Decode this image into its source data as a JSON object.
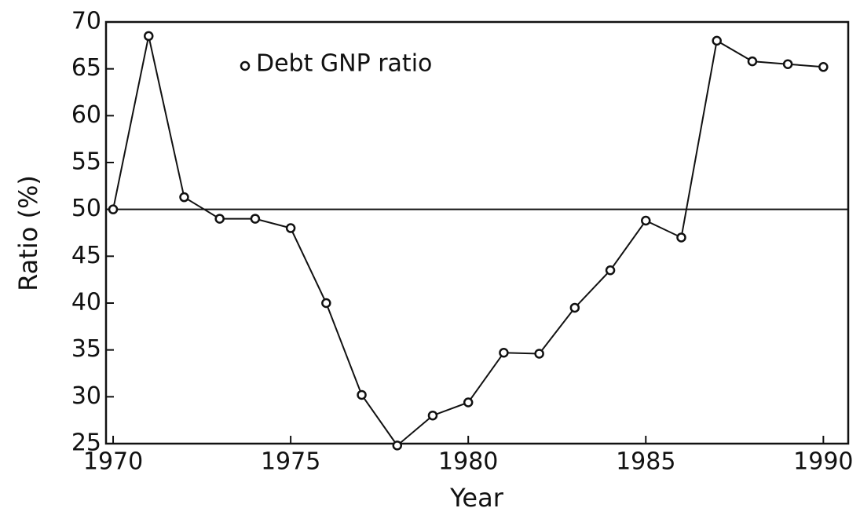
{
  "chart_data": {
    "type": "line",
    "x_label": "Year",
    "y_label": "Ratio (%)",
    "x": [
      1970,
      1971,
      1972,
      1973,
      1974,
      1975,
      1976,
      1977,
      1978,
      1979,
      1980,
      1981,
      1982,
      1983,
      1984,
      1985,
      1986,
      1987,
      1988,
      1989,
      1990
    ],
    "series": [
      {
        "name": "Debt GNP ratio",
        "color": "#111111",
        "values": [
          50,
          68.5,
          51.3,
          49,
          49,
          48,
          40,
          30.2,
          24.8,
          28,
          29.4,
          34.7,
          34.6,
          39.5,
          43.5,
          48.8,
          47,
          68,
          65.8,
          65.5,
          65.2
        ]
      }
    ],
    "reference_y": 50,
    "xlim": [
      1969.8,
      1990.7
    ],
    "xticks": [
      1970,
      1975,
      1980,
      1985,
      1990
    ],
    "ylim": [
      25,
      70
    ],
    "yticks": [
      25,
      30,
      35,
      40,
      45,
      50,
      55,
      60,
      65,
      70
    ],
    "grid": false,
    "legend": "upper left"
  }
}
